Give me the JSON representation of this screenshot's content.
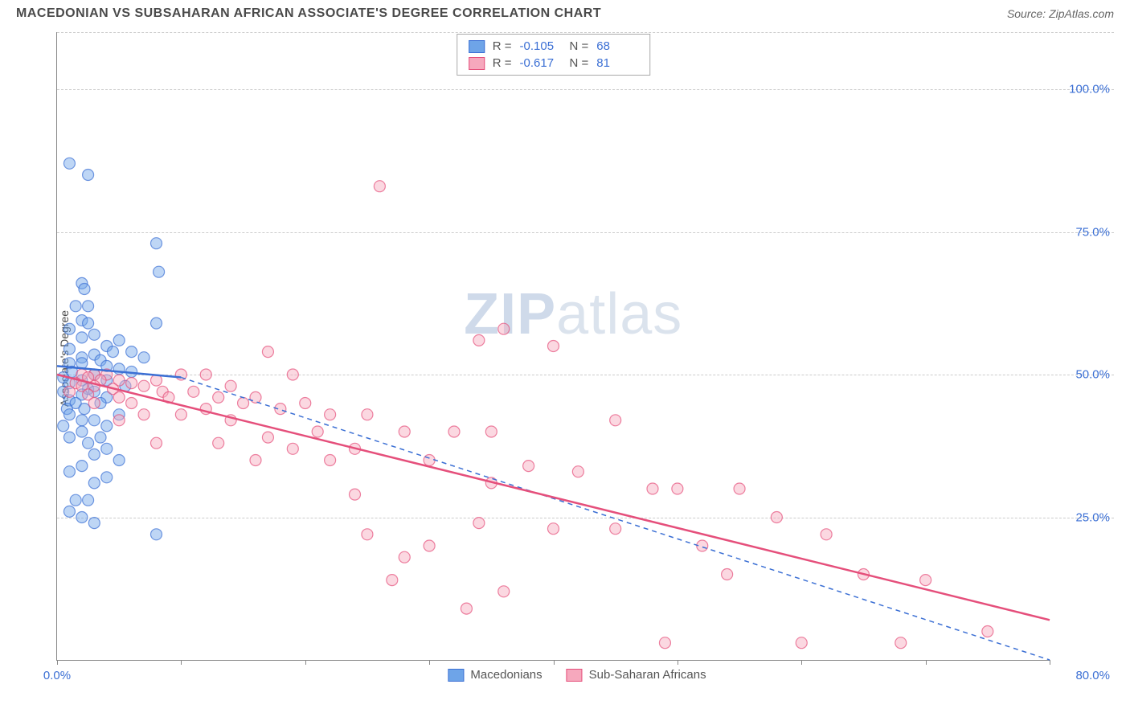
{
  "title": "MACEDONIAN VS SUBSAHARAN AFRICAN ASSOCIATE'S DEGREE CORRELATION CHART",
  "source": "Source: ZipAtlas.com",
  "y_axis_label": "Associate's Degree",
  "watermark_bold": "ZIP",
  "watermark_rest": "atlas",
  "chart": {
    "type": "scatter",
    "xlim": [
      0,
      80
    ],
    "ylim": [
      0,
      110
    ],
    "ygrid": [
      25,
      50,
      75,
      100,
      110
    ],
    "ytick_labels": [
      "25.0%",
      "50.0%",
      "75.0%",
      "100.0%",
      ""
    ],
    "xticks": [
      0,
      10,
      20,
      30,
      40,
      50,
      60,
      70,
      80
    ],
    "xtick_left_label": "0.0%",
    "xtick_right_label": "80.0%",
    "background_color": "#ffffff",
    "grid_color": "#cccccc",
    "axis_color": "#888888",
    "tick_label_color": "#3b6fd4",
    "marker_radius": 7,
    "marker_opacity": 0.45,
    "line_width": 2.5,
    "series": [
      {
        "name": "Macedonians",
        "fill_color": "#6ea4e8",
        "stroke_color": "#3b6fd4",
        "R": "-0.105",
        "N": "68",
        "trend_solid": [
          [
            0,
            51.5
          ],
          [
            10,
            49.5
          ]
        ],
        "trend_dash": [
          [
            10,
            49.5
          ],
          [
            80,
            0
          ]
        ],
        "points": [
          [
            1,
            87
          ],
          [
            2.5,
            85
          ],
          [
            8,
            73
          ],
          [
            8.2,
            68
          ],
          [
            2,
            66
          ],
          [
            2.2,
            65
          ],
          [
            1.5,
            62
          ],
          [
            2.5,
            62
          ],
          [
            2,
            59.5
          ],
          [
            2.5,
            59
          ],
          [
            8,
            59
          ],
          [
            1,
            58
          ],
          [
            3,
            57
          ],
          [
            2,
            56.5
          ],
          [
            5,
            56
          ],
          [
            4,
            55
          ],
          [
            1,
            54.5
          ],
          [
            4.5,
            54
          ],
          [
            3,
            53.5
          ],
          [
            6,
            54
          ],
          [
            2,
            53
          ],
          [
            3.5,
            52.5
          ],
          [
            7,
            53
          ],
          [
            1,
            52
          ],
          [
            2,
            52
          ],
          [
            4,
            51.5
          ],
          [
            5,
            51
          ],
          [
            1.2,
            50.5
          ],
          [
            6,
            50.5
          ],
          [
            3,
            50
          ],
          [
            0.5,
            49.5
          ],
          [
            2,
            49
          ],
          [
            4,
            49
          ],
          [
            1,
            48.5
          ],
          [
            5.5,
            48
          ],
          [
            2.5,
            47.5
          ],
          [
            0.5,
            47
          ],
          [
            3,
            47
          ],
          [
            2,
            46.5
          ],
          [
            4,
            46
          ],
          [
            1,
            45.5
          ],
          [
            1.5,
            45
          ],
          [
            3.5,
            45
          ],
          [
            0.8,
            44
          ],
          [
            2.2,
            44
          ],
          [
            1,
            43
          ],
          [
            5,
            43
          ],
          [
            2,
            42
          ],
          [
            3,
            42
          ],
          [
            0.5,
            41
          ],
          [
            4,
            41
          ],
          [
            2,
            40
          ],
          [
            1,
            39
          ],
          [
            3.5,
            39
          ],
          [
            2.5,
            38
          ],
          [
            4,
            37
          ],
          [
            3,
            36
          ],
          [
            5,
            35
          ],
          [
            2,
            34
          ],
          [
            1,
            33
          ],
          [
            4,
            32
          ],
          [
            3,
            31
          ],
          [
            1.5,
            28
          ],
          [
            2.5,
            28
          ],
          [
            8,
            22
          ],
          [
            1,
            26
          ],
          [
            2,
            25
          ],
          [
            3,
            24
          ]
        ]
      },
      {
        "name": "Sub-Saharan Africans",
        "fill_color": "#f6a8bd",
        "stroke_color": "#e54f7b",
        "R": "-0.617",
        "N": "81",
        "trend_solid": [
          [
            0,
            50
          ],
          [
            80,
            7
          ]
        ],
        "trend_dash": null,
        "points": [
          [
            26,
            83
          ],
          [
            2,
            50
          ],
          [
            3,
            50
          ],
          [
            4,
            50
          ],
          [
            2.5,
            49.5
          ],
          [
            3.5,
            49
          ],
          [
            5,
            49
          ],
          [
            1.5,
            48.5
          ],
          [
            6,
            48.5
          ],
          [
            17,
            54
          ],
          [
            12,
            50
          ],
          [
            10,
            50
          ],
          [
            8,
            49
          ],
          [
            19,
            50
          ],
          [
            2,
            48
          ],
          [
            3,
            48
          ],
          [
            4.5,
            47.5
          ],
          [
            7,
            48
          ],
          [
            8.5,
            47
          ],
          [
            11,
            47
          ],
          [
            14,
            48
          ],
          [
            1,
            47
          ],
          [
            2.5,
            46.5
          ],
          [
            5,
            46
          ],
          [
            9,
            46
          ],
          [
            13,
            46
          ],
          [
            16,
            46
          ],
          [
            3,
            45
          ],
          [
            6,
            45
          ],
          [
            15,
            45
          ],
          [
            20,
            45
          ],
          [
            12,
            44
          ],
          [
            18,
            44
          ],
          [
            7,
            43
          ],
          [
            10,
            43
          ],
          [
            22,
            43
          ],
          [
            25,
            43
          ],
          [
            5,
            42
          ],
          [
            14,
            42
          ],
          [
            34,
            56
          ],
          [
            36,
            58
          ],
          [
            40,
            55
          ],
          [
            17,
            39
          ],
          [
            21,
            40
          ],
          [
            28,
            40
          ],
          [
            32,
            40
          ],
          [
            35,
            40
          ],
          [
            8,
            38
          ],
          [
            13,
            38
          ],
          [
            19,
            37
          ],
          [
            24,
            37
          ],
          [
            16,
            35
          ],
          [
            22,
            35
          ],
          [
            30,
            35
          ],
          [
            38,
            34
          ],
          [
            42,
            33
          ],
          [
            35,
            31
          ],
          [
            24,
            29
          ],
          [
            45,
            42
          ],
          [
            48,
            30
          ],
          [
            50,
            30
          ],
          [
            45,
            23
          ],
          [
            55,
            30
          ],
          [
            58,
            25
          ],
          [
            52,
            20
          ],
          [
            62,
            22
          ],
          [
            54,
            15
          ],
          [
            65,
            15
          ],
          [
            70,
            14
          ],
          [
            75,
            5
          ],
          [
            68,
            3
          ],
          [
            36,
            12
          ],
          [
            33,
            9
          ],
          [
            30,
            20
          ],
          [
            27,
            14
          ],
          [
            25,
            22
          ],
          [
            28,
            18
          ],
          [
            40,
            23
          ],
          [
            34,
            24
          ],
          [
            49,
            3
          ],
          [
            60,
            3
          ]
        ]
      }
    ]
  },
  "legend": {
    "items": [
      {
        "label": "Macedonians",
        "fill": "#6ea4e8",
        "stroke": "#3b6fd4"
      },
      {
        "label": "Sub-Saharan Africans",
        "fill": "#f6a8bd",
        "stroke": "#e54f7b"
      }
    ]
  }
}
